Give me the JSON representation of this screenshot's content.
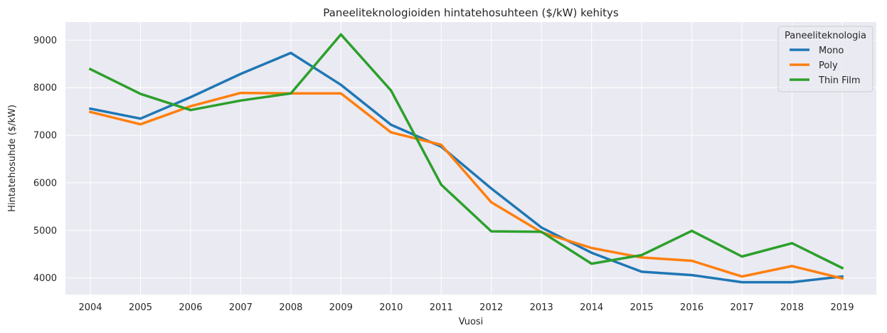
{
  "chart_data": {
    "type": "line",
    "title": "Paneeliteknologioiden hintatehosuhteen ($/kW) kehitys",
    "xlabel": "Vuosi",
    "ylabel": "Hintatehosuhde ($/kW)",
    "x": [
      "2004",
      "2005",
      "2006",
      "2007",
      "2008",
      "2009",
      "2010",
      "2011",
      "2012",
      "2013",
      "2014",
      "2015",
      "2016",
      "2017",
      "2018",
      "2019"
    ],
    "ylim": [
      3650,
      9380
    ],
    "yticks": [
      4000,
      5000,
      6000,
      7000,
      8000,
      9000
    ],
    "grid": true,
    "legend": {
      "title": "Paneeliteknologia",
      "placement": "top-right"
    },
    "series": [
      {
        "name": "Mono",
        "color": "#1f77b4",
        "values": [
          7560,
          7350,
          7800,
          8290,
          8730,
          8060,
          7220,
          6760,
          5880,
          5060,
          4530,
          4130,
          4060,
          3910,
          3910,
          4030
        ]
      },
      {
        "name": "Poly",
        "color": "#ff7f0e",
        "values": [
          7490,
          7230,
          7610,
          7890,
          7880,
          7880,
          7060,
          6800,
          5590,
          4960,
          4630,
          4430,
          4360,
          4030,
          4250,
          3990
        ]
      },
      {
        "name": "Thin Film",
        "color": "#2ca02c",
        "values": [
          8390,
          7870,
          7530,
          7730,
          7880,
          9120,
          7940,
          5960,
          4980,
          4970,
          4300,
          4480,
          4990,
          4450,
          4730,
          4210
        ]
      }
    ]
  }
}
